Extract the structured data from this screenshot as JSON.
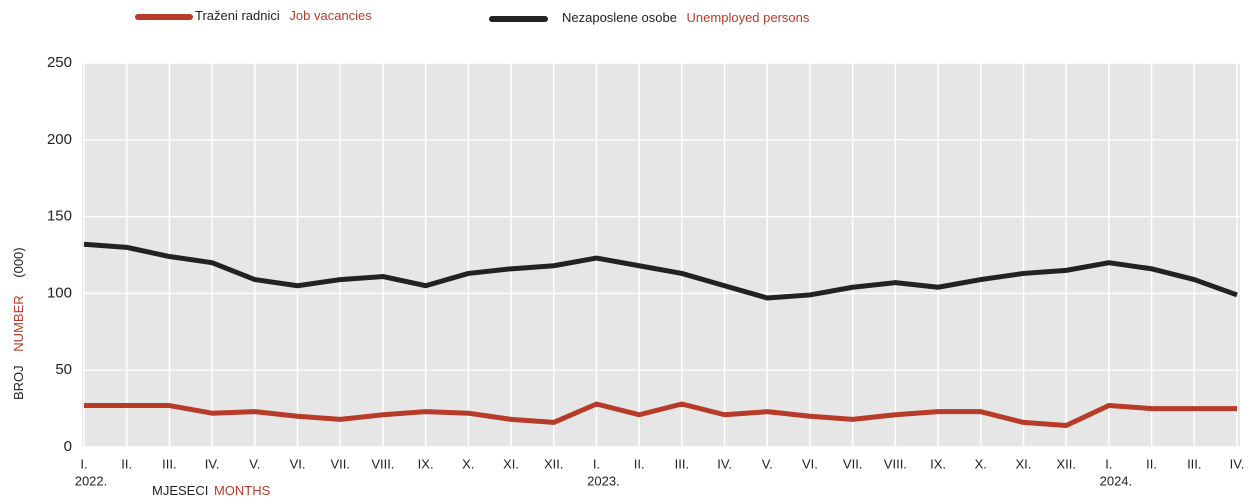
{
  "chart_data": {
    "type": "line",
    "y_label": {
      "hr": "BROJ",
      "en": "NUMBER",
      "unit": "(000)"
    },
    "x_label": {
      "hr": "MJESECI",
      "en": "MONTHS"
    },
    "categories": [
      "I.",
      "II.",
      "III.",
      "IV.",
      "V.",
      "VI.",
      "VII.",
      "VIII.",
      "IX.",
      "X.",
      "XI.",
      "XII.",
      "I.",
      "II.",
      "III.",
      "IV.",
      "V.",
      "VI.",
      "VII.",
      "VIII.",
      "IX.",
      "X.",
      "XI.",
      "XII.",
      "I.",
      "II.",
      "III.",
      "IV."
    ],
    "years": [
      "2022.",
      null,
      null,
      null,
      null,
      null,
      null,
      null,
      null,
      null,
      null,
      null,
      "2023.",
      null,
      null,
      null,
      null,
      null,
      null,
      null,
      null,
      null,
      null,
      null,
      "2024.",
      null,
      null,
      null
    ],
    "series": [
      {
        "name": "Traženi radnici",
        "name_en": "Job vacancies",
        "color": "#b83b2a",
        "values": [
          27,
          27,
          27,
          22,
          23,
          20,
          18,
          21,
          23,
          22,
          18,
          16,
          28,
          21,
          28,
          21,
          23,
          20,
          18,
          21,
          23,
          23,
          16,
          14,
          27,
          25,
          25,
          25
        ]
      },
      {
        "name": "Nezaposlene osobe",
        "name_en": "Unemployed persons",
        "color": "#222222",
        "values": [
          132,
          130,
          124,
          120,
          109,
          105,
          109,
          111,
          105,
          113,
          116,
          118,
          123,
          118,
          113,
          105,
          97,
          99,
          104,
          107,
          104,
          109,
          113,
          115,
          120,
          116,
          109,
          99
        ]
      }
    ],
    "ylim": [
      0,
      250
    ],
    "yticks": [
      0,
      50,
      100,
      150,
      200,
      250
    ],
    "grid": true
  }
}
